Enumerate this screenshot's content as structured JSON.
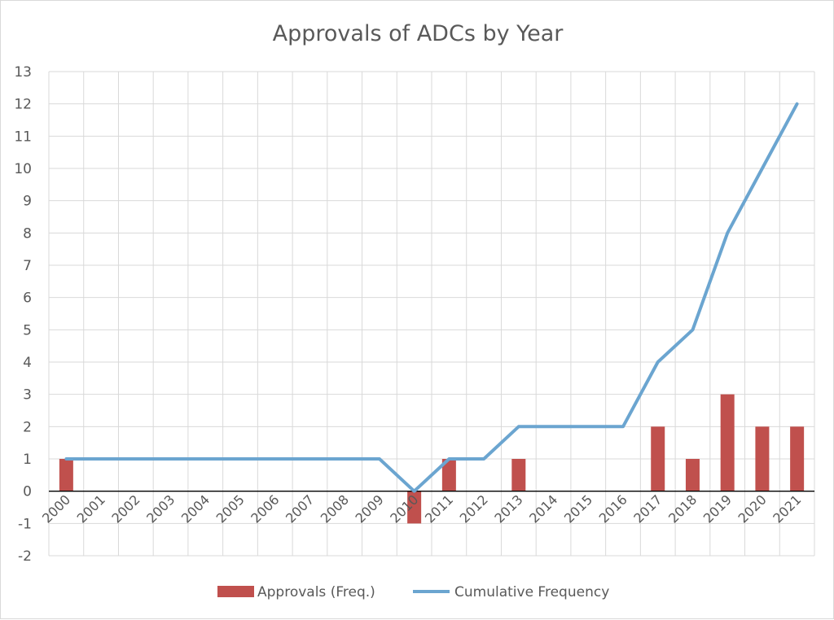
{
  "chart_data": {
    "type": "bar+line",
    "title": "Approvals of ADCs by Year",
    "categories": [
      "2000",
      "2001",
      "2002",
      "2003",
      "2004",
      "2005",
      "2006",
      "2007",
      "2008",
      "2009",
      "2010",
      "2011",
      "2012",
      "2013",
      "2014",
      "2015",
      "2016",
      "2017",
      "2018",
      "2019",
      "2020",
      "2021"
    ],
    "series": [
      {
        "name": "Approvals (Freq.)",
        "type": "bar",
        "color": "#c0504d",
        "values": [
          1,
          0,
          0,
          0,
          0,
          0,
          0,
          0,
          0,
          0,
          -1,
          1,
          0,
          1,
          0,
          0,
          0,
          2,
          1,
          3,
          2,
          2
        ]
      },
      {
        "name": "Cumulative Frequency",
        "type": "line",
        "color": "#6ba5d0",
        "values": [
          1,
          1,
          1,
          1,
          1,
          1,
          1,
          1,
          1,
          1,
          0,
          1,
          1,
          2,
          2,
          2,
          2,
          4,
          5,
          8,
          10,
          12
        ]
      }
    ],
    "ylim": [
      -2,
      13
    ],
    "yticks": [
      -2,
      -1,
      0,
      1,
      2,
      3,
      4,
      5,
      6,
      7,
      8,
      9,
      10,
      11,
      12,
      13
    ],
    "xlabel": "",
    "ylabel": "",
    "grid": true,
    "legend_position": "bottom"
  }
}
